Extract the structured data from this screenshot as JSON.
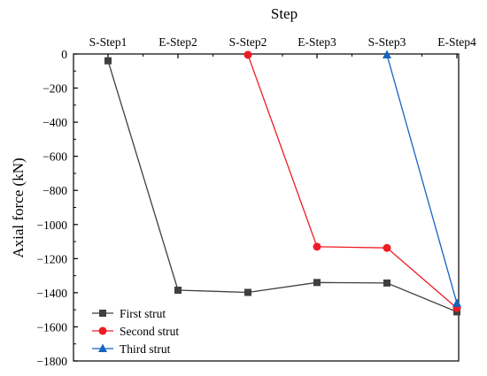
{
  "chart_data": {
    "type": "line",
    "xlabel": "Step",
    "ylabel": "Axial force (kN)",
    "categories": [
      "S-Step1",
      "E-Step2",
      "S-Step2",
      "E-Step3",
      "S-Step3",
      "E-Step4"
    ],
    "ylim": [
      -1800,
      0
    ],
    "yticks": [
      0,
      -200,
      -400,
      -600,
      -800,
      -1000,
      -1200,
      -1400,
      -1600,
      -1800
    ],
    "legend_position": "bottom-left",
    "grid": false,
    "series": [
      {
        "name": "First strut",
        "color": "#3f3f3f",
        "marker": "square",
        "points": [
          {
            "x": "S-Step1",
            "y": -40
          },
          {
            "x": "E-Step2",
            "y": -1385
          },
          {
            "x": "S-Step2",
            "y": -1398
          },
          {
            "x": "E-Step3",
            "y": -1340
          },
          {
            "x": "S-Step3",
            "y": -1343
          },
          {
            "x": "E-Step4",
            "y": -1512
          }
        ]
      },
      {
        "name": "Second strut",
        "color": "#ee1c24",
        "marker": "circle",
        "points": [
          {
            "x": "S-Step2",
            "y": -5
          },
          {
            "x": "E-Step3",
            "y": -1130
          },
          {
            "x": "S-Step3",
            "y": -1137
          },
          {
            "x": "E-Step4",
            "y": -1490
          }
        ]
      },
      {
        "name": "Third strut",
        "color": "#1565c0",
        "marker": "triangle",
        "points": [
          {
            "x": "S-Step3",
            "y": -5
          },
          {
            "x": "E-Step4",
            "y": -1462
          }
        ]
      }
    ]
  }
}
